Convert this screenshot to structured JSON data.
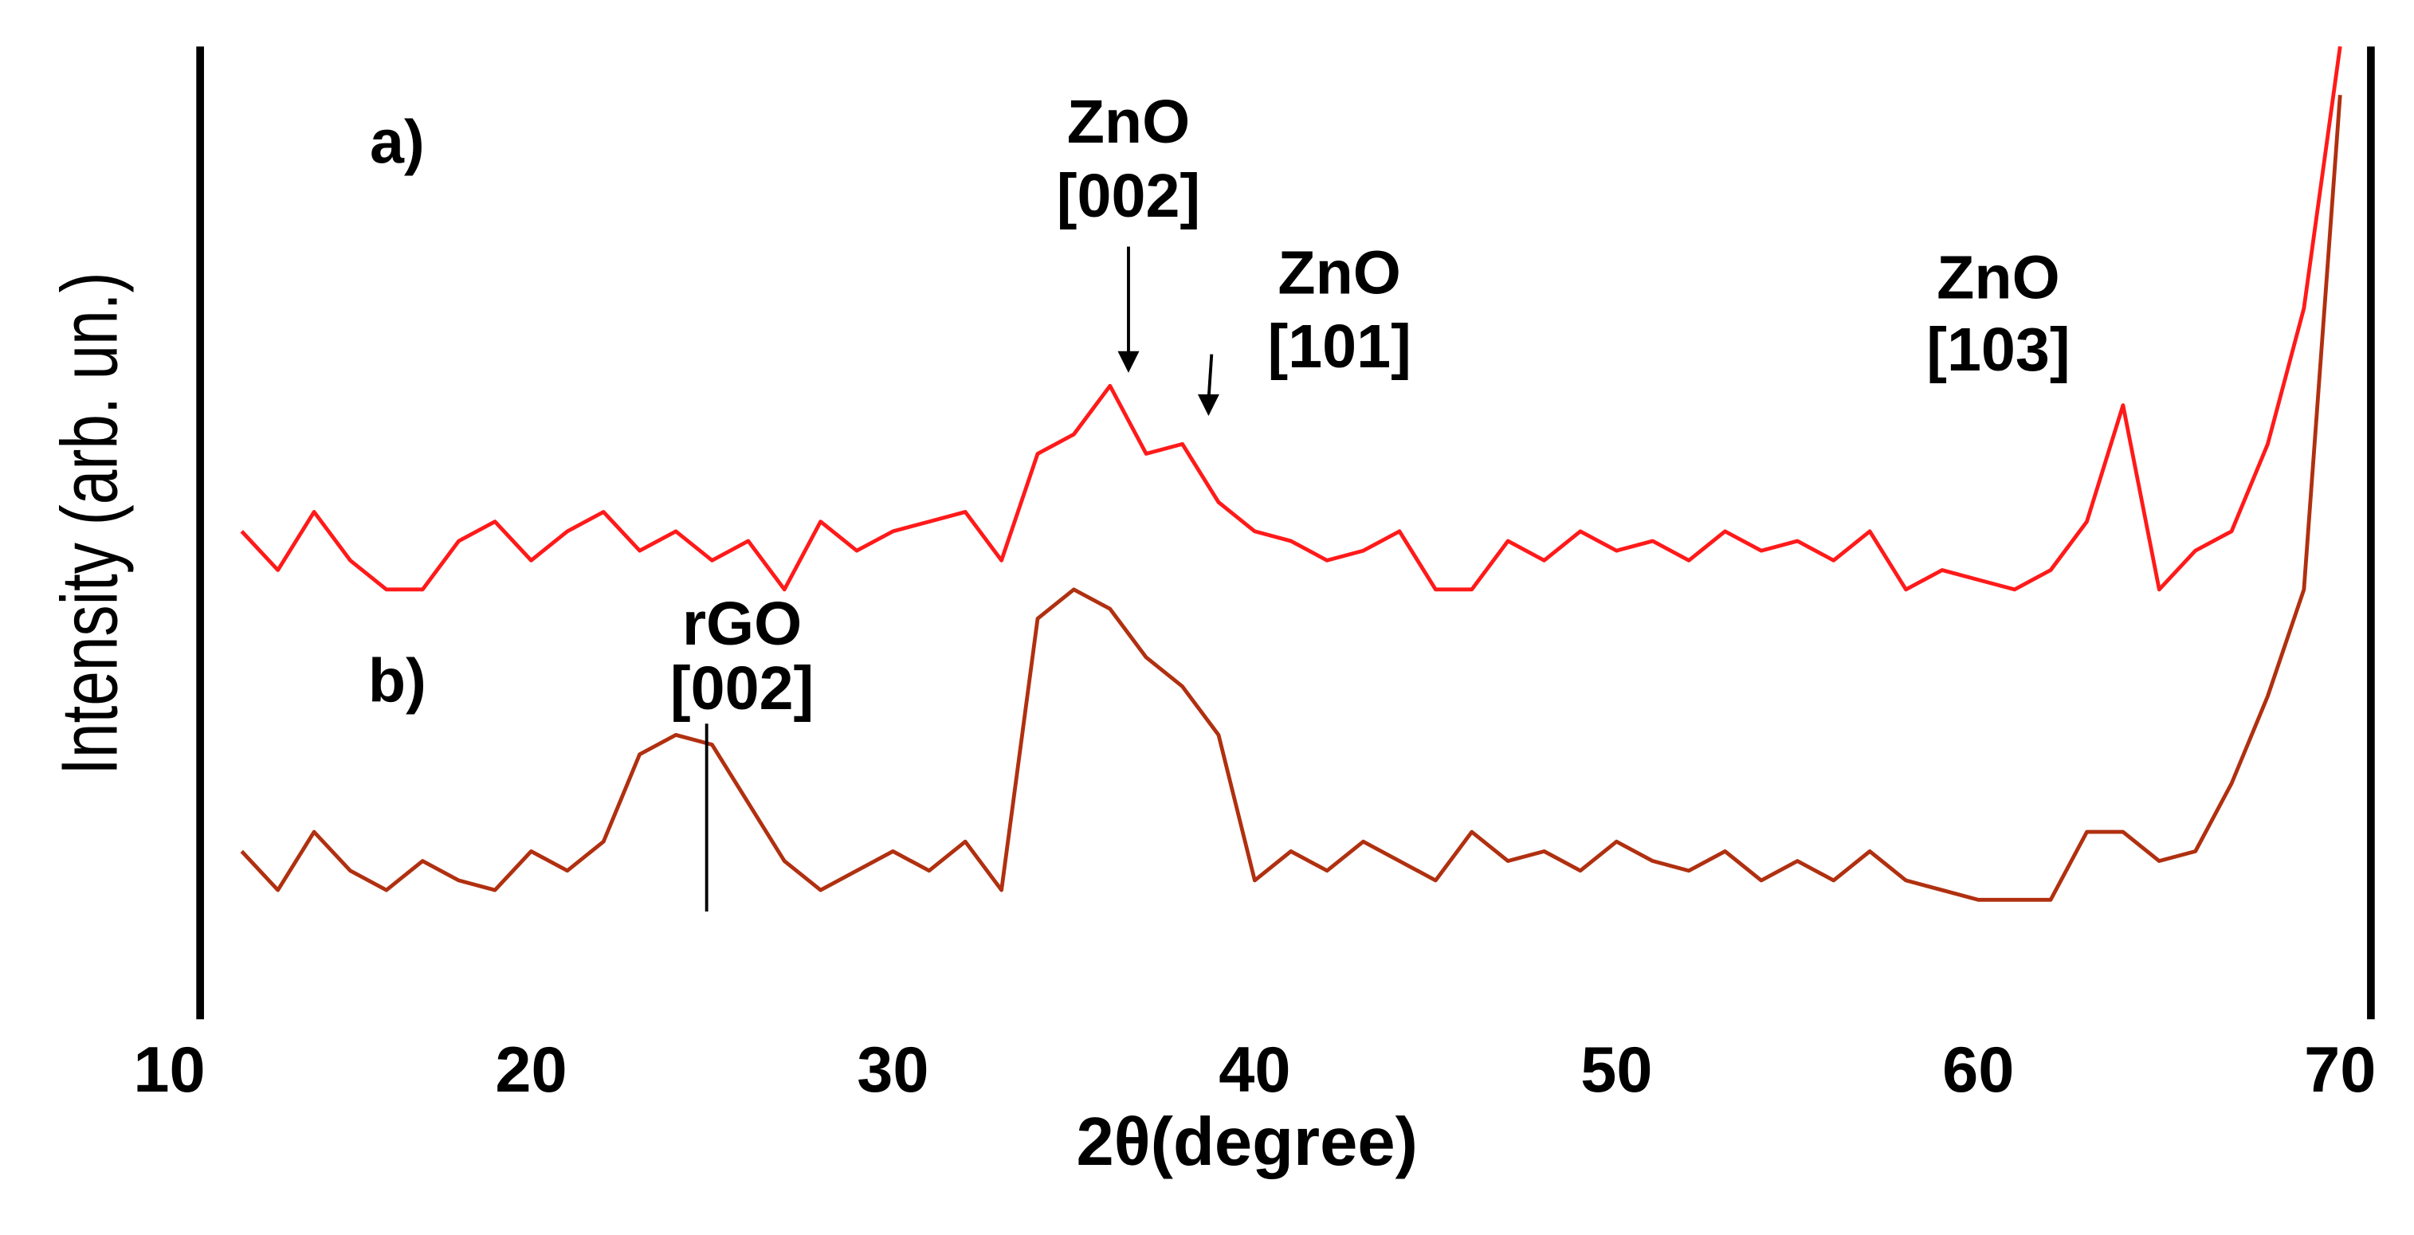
{
  "chart_data": {
    "type": "line",
    "x_label": "2θ(degree)",
    "y_label": "Intensity (arb. un.)",
    "x": [
      12,
      13,
      14,
      15,
      16,
      17,
      18,
      19,
      20,
      21,
      22,
      23,
      24,
      25,
      26,
      27,
      28,
      29,
      30,
      31,
      32,
      33,
      34,
      35,
      36,
      37,
      38,
      39,
      40,
      41,
      42,
      43,
      44,
      45,
      46,
      47,
      48,
      49,
      50,
      51,
      52,
      53,
      54,
      55,
      56,
      57,
      58,
      59,
      60,
      61,
      62,
      63,
      64,
      65,
      66,
      67,
      68,
      69,
      70
    ],
    "series": [
      {
        "name": "a)",
        "color": "#ff1a1a",
        "values": [
          50,
          46,
          52,
          47,
          44,
          44,
          49,
          51,
          47,
          50,
          52,
          48,
          50,
          47,
          49,
          44,
          51,
          48,
          50,
          51,
          52,
          47,
          58,
          60,
          65,
          58,
          59,
          53,
          50,
          49,
          47,
          48,
          50,
          44,
          44,
          49,
          47,
          50,
          48,
          49,
          47,
          50,
          48,
          49,
          47,
          50,
          44,
          46,
          45,
          44,
          46,
          51,
          63,
          44,
          48,
          50,
          59,
          73,
          100
        ]
      },
      {
        "name": "b)",
        "color": "#b03010",
        "values": [
          17,
          13,
          19,
          15,
          13,
          16,
          14,
          13,
          17,
          15,
          18,
          27,
          29,
          28,
          22,
          16,
          13,
          15,
          17,
          15,
          18,
          13,
          41,
          44,
          42,
          37,
          34,
          29,
          14,
          17,
          15,
          18,
          16,
          14,
          19,
          16,
          17,
          15,
          18,
          16,
          15,
          17,
          14,
          16,
          14,
          17,
          14,
          13,
          12,
          12,
          12,
          19,
          19,
          16,
          17,
          24,
          33,
          44,
          95
        ]
      }
    ],
    "annotations": [
      [
        "ZnO",
        "[002]"
      ],
      [
        "ZnO",
        "[101]"
      ],
      [
        "rGO",
        "[002]"
      ],
      [
        "ZnO",
        "[103]"
      ]
    ],
    "xlim": [
      10,
      71
    ],
    "xticks": [
      10,
      20,
      30,
      40,
      50,
      60,
      70
    ],
    "ylim": [
      0,
      100
    ],
    "grid": false
  }
}
